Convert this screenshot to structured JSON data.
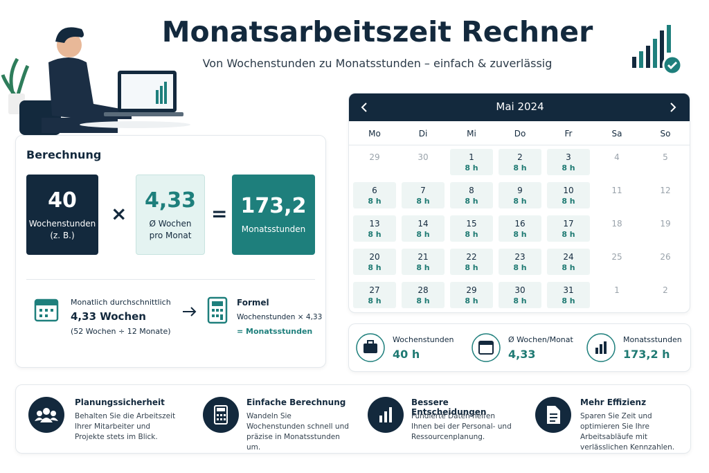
{
  "header": {
    "title": "Monatsarbeitszeit Rechner",
    "subtitle": "Von Wochenstunden zu Monatsstunden – einfach & zuverlässig"
  },
  "calculation": {
    "heading": "Berechnung",
    "cards": [
      {
        "value": "40",
        "lines": [
          "Wochenstunden",
          "(z. B.)"
        ]
      },
      {
        "value": "4,33",
        "lines": [
          "Ø Wochen",
          "pro Monat"
        ]
      },
      {
        "value": "173,2",
        "lines": [
          "Monatsstunden"
        ]
      }
    ],
    "operators": [
      "×",
      "="
    ],
    "average": {
      "label": "Monatlich durchschnittlich",
      "value": "4,33 Wochen",
      "note": "(52 Wochen ÷ 12 Monate)"
    },
    "formula": {
      "label": "Formel",
      "expression": "Wochenstunden × 4,33",
      "result": "= Monatsstunden"
    }
  },
  "calendar": {
    "month": "Mai 2024",
    "weekdays": [
      "Mo",
      "Di",
      "Mi",
      "Do",
      "Fr",
      "Sa",
      "So"
    ],
    "weeks": [
      [
        {
          "day": 29
        },
        {
          "day": 30
        },
        {
          "day": 1,
          "hours": "8 h"
        },
        {
          "day": 2,
          "hours": "8 h"
        },
        {
          "day": 3,
          "hours": "8 h"
        },
        {
          "day": 4
        },
        {
          "day": 5
        }
      ],
      [
        {
          "day": 6,
          "hours": "8 h"
        },
        {
          "day": 7,
          "hours": "8 h"
        },
        {
          "day": 8,
          "hours": "8 h"
        },
        {
          "day": 9,
          "hours": "8 h"
        },
        {
          "day": 10,
          "hours": "8 h"
        },
        {
          "day": 11
        },
        {
          "day": 12
        }
      ],
      [
        {
          "day": 13,
          "hours": "8 h"
        },
        {
          "day": 14,
          "hours": "8 h"
        },
        {
          "day": 15,
          "hours": "8 h"
        },
        {
          "day": 16,
          "hours": "8 h"
        },
        {
          "day": 17,
          "hours": "8 h"
        },
        {
          "day": 18
        },
        {
          "day": 19
        }
      ],
      [
        {
          "day": 20,
          "hours": "8 h"
        },
        {
          "day": 21,
          "hours": "8 h"
        },
        {
          "day": 22,
          "hours": "8 h"
        },
        {
          "day": 23,
          "hours": "8 h"
        },
        {
          "day": 24,
          "hours": "8 h"
        },
        {
          "day": 25
        },
        {
          "day": 26
        }
      ],
      [
        {
          "day": 27,
          "hours": "8 h"
        },
        {
          "day": 28,
          "hours": "8 h"
        },
        {
          "day": 29,
          "hours": "8 h"
        },
        {
          "day": 30,
          "hours": "8 h"
        },
        {
          "day": 31,
          "hours": "8 h"
        },
        {
          "day": 1
        },
        {
          "day": 2
        }
      ]
    ]
  },
  "summary": [
    {
      "label": "Wochenstunden",
      "value": "40 h"
    },
    {
      "label": "Ø Wochen/Monat",
      "value": "4,33"
    },
    {
      "label": "Monatsstunden",
      "value": "173,2 h"
    }
  ],
  "features": [
    {
      "title": "Planungssicherheit",
      "text": "Behalten Sie die Arbeitszeit Ihrer Mitarbeiter und Projekte stets im Blick."
    },
    {
      "title": "Einfache Berechnung",
      "text": "Wandeln Sie Wochenstunden schnell und präzise in Monatsstunden um."
    },
    {
      "title": "Bessere Entscheidungen",
      "text": "Fundierte Daten helfen Ihnen bei der Personal- und Ressourcenplanung."
    },
    {
      "title": "Mehr Effizienz",
      "text": "Sparen Sie Zeit und optimieren Sie Ihre Arbeitsabläufe mit verlässlichen Kennzahlen."
    }
  ]
}
